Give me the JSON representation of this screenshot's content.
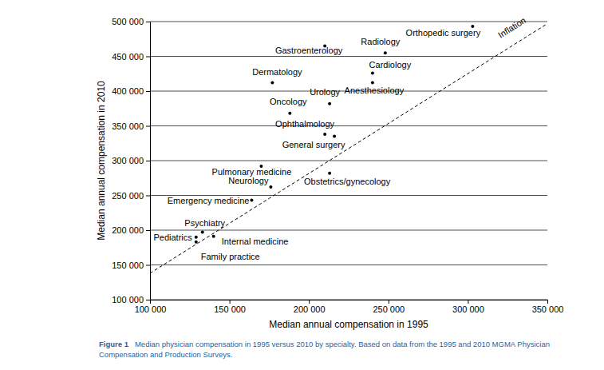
{
  "chart_data": {
    "type": "scatter",
    "x_label": "Median annual compensation in 1995",
    "y_label": "Median annual compensation in 2010",
    "figure_label": "Figure 1",
    "caption": [
      "Median physician compensation in 1995 versus 2010 by specialty. Based on data from the 1995 and 2010 MGMA Physician",
      "Compensation and Production Surveys."
    ],
    "xlim": [
      100000,
      350000
    ],
    "ylim": [
      100000,
      500000
    ],
    "xticks": [
      {
        "value": 100000,
        "label": "100 000"
      },
      {
        "value": 150000,
        "label": "150 000"
      },
      {
        "value": 200000,
        "label": "200 000"
      },
      {
        "value": 250000,
        "label": "250 000"
      },
      {
        "value": 300000,
        "label": "300 000"
      },
      {
        "value": 350000,
        "label": "350 000"
      }
    ],
    "yticks": [
      {
        "value": 100000,
        "label": "100 000"
      },
      {
        "value": 150000,
        "label": "150 000"
      },
      {
        "value": 200000,
        "label": "200 000"
      },
      {
        "value": 250000,
        "label": "250 000"
      },
      {
        "value": 300000,
        "label": "300 000"
      },
      {
        "value": 350000,
        "label": "350 000"
      },
      {
        "value": 400000,
        "label": "400 000"
      },
      {
        "value": 450000,
        "label": "450 000"
      },
      {
        "value": 500000,
        "label": "500 000"
      }
    ],
    "grid": true,
    "series": [
      {
        "type": "scatter",
        "color": "#000000",
        "marker": "circle",
        "labels": [
          "Orthopedic surgery",
          "Gastroenterology",
          "Radiology",
          "Cardiology",
          "Anesthesiology",
          "Dermatology",
          "Urology",
          "Oncology",
          "Ophthalmology",
          "General surgery",
          "Pulmonary medicine",
          "Neurology",
          "Obstetrics/gynecology",
          "Emergency medicine",
          "Psychiatry",
          "Pediatrics",
          "Internal medicine",
          "Family practice"
        ],
        "x": [
          303000,
          210000,
          248000,
          240000,
          240000,
          177000,
          213000,
          188000,
          210000,
          216000,
          170000,
          176000,
          213000,
          164000,
          133000,
          129000,
          140000,
          129000
        ],
        "values": [
          493000,
          465000,
          455000,
          426000,
          412000,
          412000,
          382000,
          368000,
          338000,
          335000,
          292000,
          262000,
          282000,
          243000,
          197000,
          190000,
          191000,
          183000
        ]
      },
      {
        "name": "Inflation",
        "type": "line",
        "line_style": "dashed",
        "color": "#000000",
        "x": [
          100000,
          350000
        ],
        "values": [
          138000,
          497000
        ]
      }
    ]
  }
}
